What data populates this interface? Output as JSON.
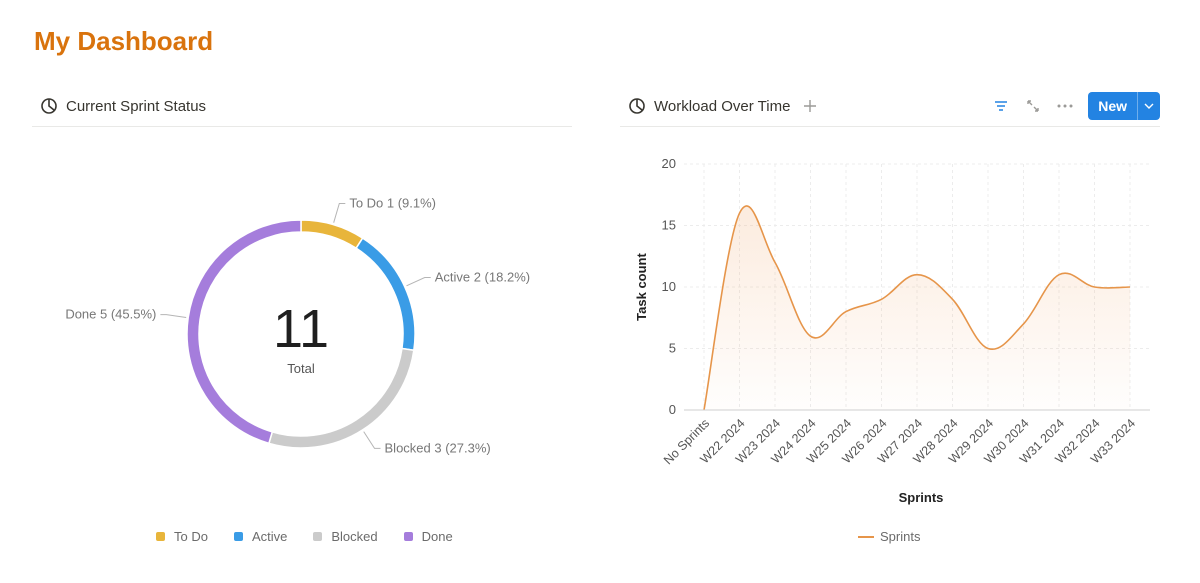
{
  "page": {
    "title": "My Dashboard"
  },
  "sprint_panel": {
    "title": "Current Sprint Status",
    "total_value": "11",
    "total_label": "Total",
    "slices": [
      {
        "name": "To Do",
        "label": "To Do  1 (9.1%)",
        "value": 1,
        "color": "#e8b53b"
      },
      {
        "name": "Active",
        "label": "Active  2 (18.2%)",
        "value": 2,
        "color": "#3a9ce6"
      },
      {
        "name": "Blocked",
        "label": "Blocked  3 (27.3%)",
        "value": 3,
        "color": "#cbcbcb"
      },
      {
        "name": "Done",
        "label": "Done  5 (45.5%)",
        "value": 5,
        "color": "#a57ddc"
      }
    ],
    "legend": [
      "To Do",
      "Active",
      "Blocked",
      "Done"
    ]
  },
  "workload_panel": {
    "title": "Workload Over Time",
    "new_button_label": "New",
    "tools": [
      "filter-icon",
      "expand-icon",
      "more-icon"
    ]
  },
  "chart_data": [
    {
      "type": "pie",
      "title": "Current Sprint Status",
      "categories": [
        "To Do",
        "Active",
        "Blocked",
        "Done"
      ],
      "values": [
        1,
        2,
        3,
        5
      ],
      "center_label": "Total",
      "center_value": 11
    },
    {
      "type": "area",
      "title": "Workload Over Time",
      "xlabel": "Sprints",
      "ylabel": "Task count",
      "ylim": [
        0,
        20
      ],
      "yticks": [
        0,
        5,
        10,
        15,
        20
      ],
      "categories": [
        "No Sprints",
        "W22 2024",
        "W23 2024",
        "W24 2024",
        "W25 2024",
        "W26 2024",
        "W27 2024",
        "W28 2024",
        "W29 2024",
        "W30 2024",
        "W31 2024",
        "W32 2024",
        "W33 2024"
      ],
      "series": [
        {
          "name": "Sprints",
          "values": [
            0,
            16,
            12,
            6,
            8,
            9,
            11,
            9,
            5,
            7,
            11,
            10,
            10
          ],
          "color": "#e6954a"
        }
      ],
      "grid": true,
      "legend": "bottom"
    }
  ]
}
